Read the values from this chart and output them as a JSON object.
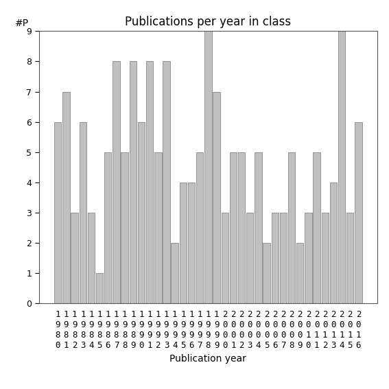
{
  "title": "Publications per year in class",
  "xlabel": "Publication year",
  "ylabel": "#P",
  "years": [
    "1980",
    "1981",
    "1982",
    "1983",
    "1984",
    "1985",
    "1986",
    "1987",
    "1988",
    "1989",
    "1990",
    "1991",
    "1992",
    "1993",
    "1994",
    "1995",
    "1996",
    "1997",
    "1998",
    "1999",
    "2000",
    "2001",
    "2002",
    "2003",
    "2004",
    "2005",
    "2006",
    "2007",
    "2008",
    "2009",
    "2010",
    "2011",
    "2012",
    "2013",
    "2014",
    "2015",
    "2016"
  ],
  "values": [
    6,
    7,
    3,
    6,
    3,
    1,
    5,
    8,
    5,
    8,
    6,
    8,
    5,
    8,
    2,
    4,
    4,
    5,
    9,
    7,
    3,
    5,
    5,
    3,
    5,
    2,
    3,
    3,
    5,
    2,
    3,
    5,
    3,
    4,
    9,
    3,
    6
  ],
  "bar_color": "#c0c0c0",
  "bar_edgecolor": "#888888",
  "ylim": [
    0,
    9
  ],
  "yticks": [
    0,
    1,
    2,
    3,
    4,
    5,
    6,
    7,
    8,
    9
  ],
  "background_color": "#ffffff",
  "title_fontsize": 12,
  "axis_label_fontsize": 10,
  "tick_fontsize": 9,
  "ylabel_fontsize": 10
}
